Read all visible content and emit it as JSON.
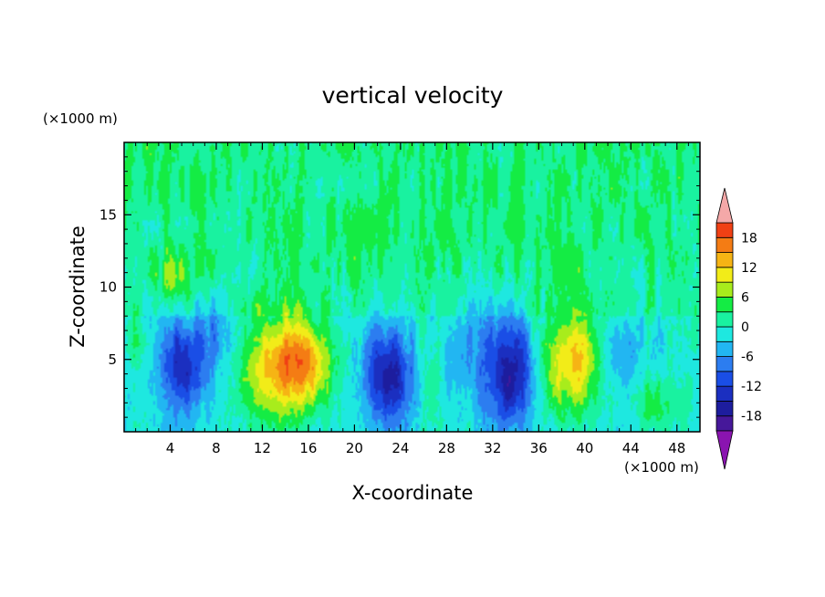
{
  "chart_data": {
    "type": "heatmap",
    "title": "vertical velocity",
    "xlabel": "X-coordinate",
    "ylabel": "Z-coordinate",
    "x_unit": "(×1000 m)",
    "y_unit": "(×1000 m)",
    "xlim": [
      0,
      50
    ],
    "ylim": [
      0,
      20
    ],
    "x_ticks": [
      4,
      8,
      12,
      16,
      20,
      24,
      28,
      32,
      36,
      40,
      44,
      48
    ],
    "y_ticks": [
      5,
      10,
      15
    ],
    "grid": false,
    "colorbar": {
      "placement": "right",
      "levels": [
        -21,
        -18,
        -15,
        -12,
        -9,
        -6,
        -3,
        0,
        3,
        6,
        9,
        12,
        15,
        18,
        21
      ],
      "labels": [
        18,
        12,
        6,
        0,
        -6,
        -12,
        -18
      ],
      "colors": [
        "#8a14b0",
        "#46189a",
        "#1d1d9e",
        "#1b2fc0",
        "#1a4ee6",
        "#2c7df0",
        "#22b6f2",
        "#1ee8e0",
        "#19f2a0",
        "#14ec44",
        "#a8ec1c",
        "#f2ec18",
        "#f6b414",
        "#f47c14",
        "#f04014",
        "#e61410",
        "#f4a8a8"
      ],
      "extend": "both"
    },
    "features": [
      {
        "x": 5.0,
        "z": 4.5,
        "w": -13,
        "sx": 1.5,
        "sz": 2.2
      },
      {
        "x": 13.5,
        "z": 4.3,
        "w": 15,
        "sx": 2.4,
        "sz": 2.6
      },
      {
        "x": 16.0,
        "z": 5.0,
        "w": 9,
        "sx": 1.6,
        "sz": 2.0
      },
      {
        "x": 23.0,
        "z": 3.8,
        "w": -14,
        "sx": 1.5,
        "sz": 2.3
      },
      {
        "x": 33.5,
        "z": 4.0,
        "w": -15,
        "sx": 1.6,
        "sz": 2.6
      },
      {
        "x": 38.8,
        "z": 5.0,
        "w": 14,
        "sx": 1.9,
        "sz": 2.6
      },
      {
        "x": 26.5,
        "z": 4.0,
        "w": 4,
        "sx": 0.8,
        "sz": 2.5
      },
      {
        "x": 46.0,
        "z": 2.0,
        "w": 6,
        "sx": 1.2,
        "sz": 1.3
      },
      {
        "x": 48.5,
        "z": 2.0,
        "w": 3,
        "sx": 0.6,
        "sz": 1.2
      },
      {
        "x": 4.2,
        "z": 10.5,
        "w": 5,
        "sx": 1.0,
        "sz": 1.2
      },
      {
        "x": 1.0,
        "z": 6.5,
        "w": 4,
        "sx": 0.8,
        "sz": 1.5
      },
      {
        "x": 49.5,
        "z": 7.0,
        "w": 4,
        "sx": 0.6,
        "sz": 1.5
      },
      {
        "x": 43.0,
        "z": 5.0,
        "w": -4,
        "sx": 1.2,
        "sz": 2.0
      },
      {
        "x": 29.5,
        "z": 5.0,
        "w": -3,
        "sx": 1.5,
        "sz": 2.5
      },
      {
        "x": 8.5,
        "z": 7.0,
        "w": -5,
        "sx": 1.2,
        "sz": 2.0
      }
    ]
  }
}
